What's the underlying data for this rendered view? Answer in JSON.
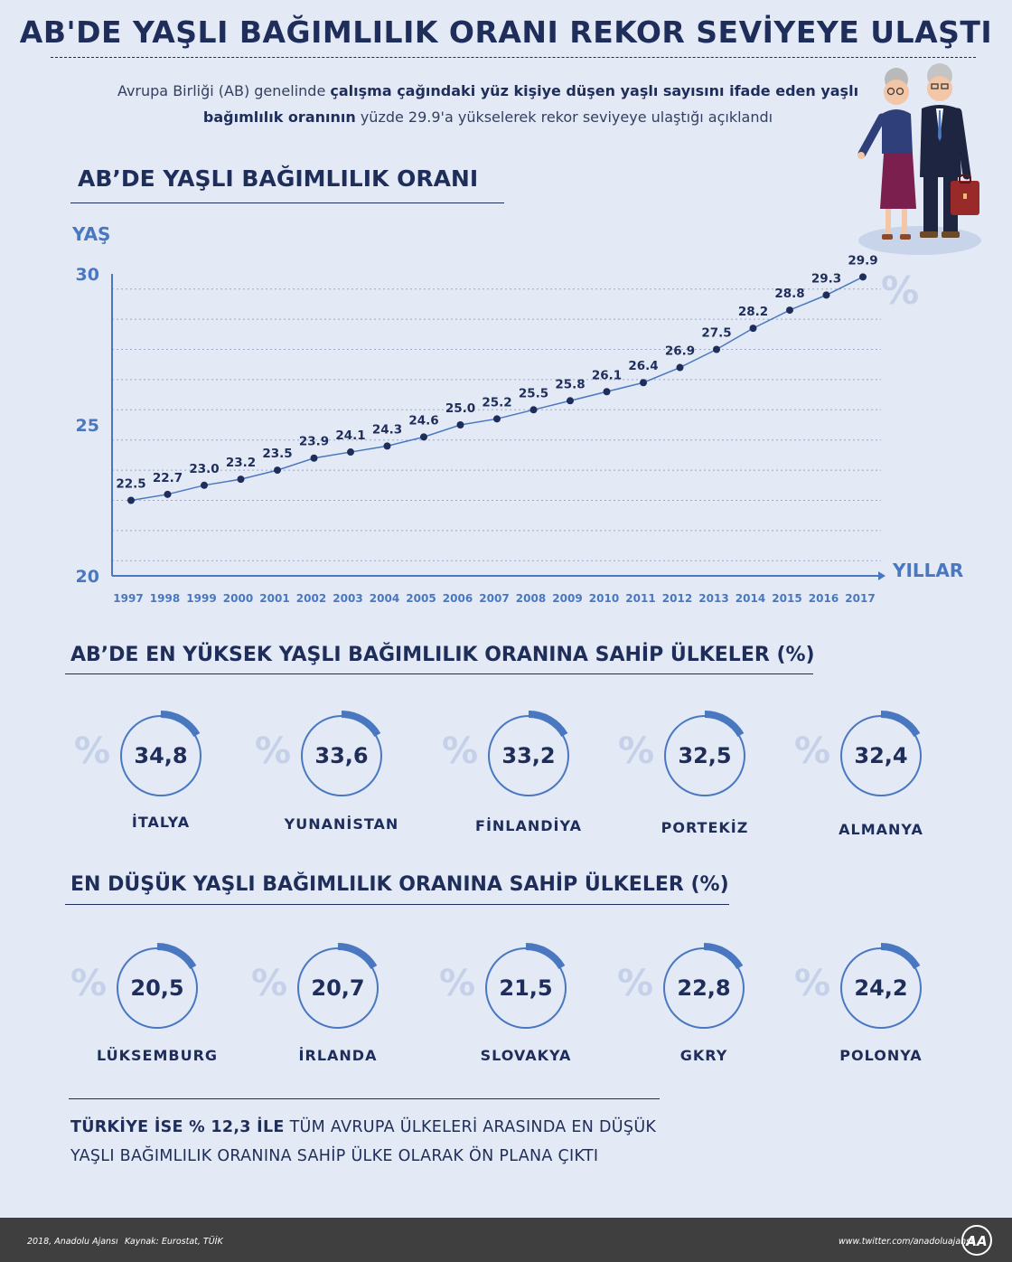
{
  "header": {
    "title": "AB'DE YAŞLI BAĞIMLILIK ORANI REKOR SEVİYEYE ULAŞTI",
    "intro_part1": "Avrupa Birliği (AB) genelinde ",
    "intro_bold1": "çalışma çağındaki yüz kişiye düşen yaşlı sayısını ifade eden yaşlı",
    "intro_bold2": "bağımlılık oranının",
    "intro_part2": " yüzde 29.9'a yükselerek rekor seviyeye ulaştığı açıklandı"
  },
  "chart_data": {
    "type": "line",
    "title": "AB’DE YAŞLI BAĞIMLILIK ORANI",
    "ylabel": "YAŞ",
    "xlabel": "YILLAR",
    "unit_symbol": "%",
    "x": [
      "1997",
      "1998",
      "1999",
      "2000",
      "2001",
      "2002",
      "2003",
      "2004",
      "2005",
      "2006",
      "2007",
      "2008",
      "2009",
      "2010",
      "2011",
      "2012",
      "2013",
      "2014",
      "2015",
      "2016",
      "2017"
    ],
    "values": [
      22.5,
      22.7,
      23.0,
      23.2,
      23.5,
      23.9,
      24.1,
      24.3,
      24.6,
      25.0,
      25.2,
      25.5,
      25.8,
      26.1,
      26.4,
      26.9,
      27.5,
      28.2,
      28.8,
      29.3,
      29.9
    ],
    "value_labels": [
      "22.5",
      "22.7",
      "23.0",
      "23.2",
      "23.5",
      "23.9",
      "24.1",
      "24.3",
      "24.6",
      "25.0",
      "25.2",
      "25.5",
      "25.8",
      "26.1",
      "26.4",
      "26.9",
      "27.5",
      "28.2",
      "28.8",
      "29.3",
      "29.9"
    ],
    "ylim": [
      20,
      30
    ],
    "yticks": [
      "20",
      "25",
      "30"
    ],
    "grid": true,
    "colors": {
      "line": "#4a78c0",
      "marker": "#1e2d5a",
      "axis": "#4a78c0"
    }
  },
  "highest": {
    "title": "AB’DE EN YÜKSEK YAŞLI BAĞIMLILIK ORANINA SAHİP ÜLKELER (%)",
    "items": [
      {
        "value": "34,8",
        "name": "İTALYA"
      },
      {
        "value": "33,6",
        "name": "YUNANİSTAN"
      },
      {
        "value": "33,2",
        "name": "FİNLANDİYA"
      },
      {
        "value": "32,5",
        "name": "PORTEKİZ"
      },
      {
        "value": "32,4",
        "name": "ALMANYA"
      }
    ]
  },
  "lowest": {
    "title": "EN DÜŞÜK YAŞLI BAĞIMLILIK ORANINA SAHİP ÜLKELER (%)",
    "items": [
      {
        "value": "20,5",
        "name": "LÜKSEMBURG"
      },
      {
        "value": "20,7",
        "name": "İRLANDA"
      },
      {
        "value": "21,5",
        "name": "SLOVAKYA"
      },
      {
        "value": "22,8",
        "name": "GKRY"
      },
      {
        "value": "24,2",
        "name": "POLONYA"
      }
    ]
  },
  "pct_symbol": "%",
  "turkey": {
    "bold": "TÜRKİYE İSE % 12,3 İLE",
    "line1_rest": " TÜM AVRUPA ÜLKELERİ ARASINDA EN DÜŞÜK",
    "line2": "YAŞLI BAĞIMLILIK ORANINA SAHİP ÜLKE OLARAK ÖN PLANA ÇIKTI"
  },
  "footer": {
    "credit": "2018, Anadolu Ajansı",
    "source": "Kaynak: Eurostat, TÜİK",
    "twitter": "www.twitter.com/anadoluajansi",
    "logo_text": "AA"
  },
  "colors": {
    "background": "#e3eaf6",
    "navy": "#1e2d5a",
    "accent": "#4a78c0",
    "pale": "#c5d1e8",
    "footer": "#3f3f3f"
  }
}
